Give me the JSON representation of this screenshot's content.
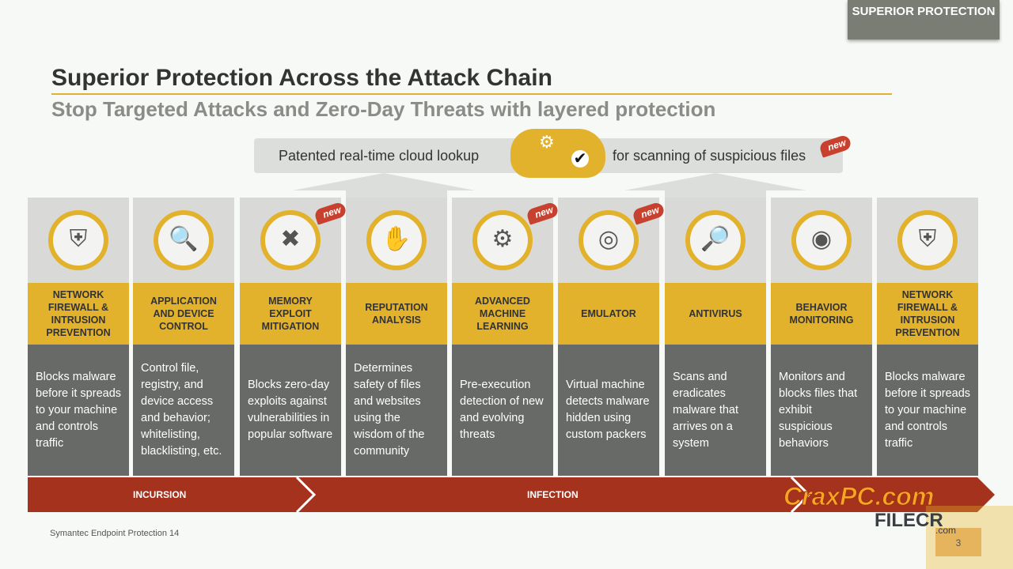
{
  "badge": "SUPERIOR PROTECTION",
  "title": "Superior Protection Across the Attack Chain",
  "subtitle": "Stop Targeted Attacks and Zero-Day Threats with layered protection",
  "banner": {
    "left": "Patented real-time cloud lookup",
    "right": "for scanning of suspicious files",
    "new_label": "new"
  },
  "columns": [
    {
      "icon": "firewall-shield-icon",
      "glyph": "⛨",
      "title": "NETWORK FIREWALL & INTRUSION PREVENTION",
      "desc": "Blocks malware before it spreads to your machine and controls traffic",
      "new": false
    },
    {
      "icon": "app-search-icon",
      "glyph": "🔍",
      "title": "APPLICATION AND DEVICE CONTROL",
      "desc": "Control file, registry, and device access and behavior; whitelisting, blacklisting, etc.",
      "new": false
    },
    {
      "icon": "exploit-shield-icon",
      "glyph": "✖",
      "title": "MEMORY EXPLOIT MITIGATION",
      "desc": "Blocks zero-day exploits against vulnerabilities in popular software",
      "new": true
    },
    {
      "icon": "hand-stop-icon",
      "glyph": "✋",
      "title": "REPUTATION ANALYSIS",
      "desc": "Determines safety of files and websites using the wisdom of the community",
      "new": false
    },
    {
      "icon": "gears-icon",
      "glyph": "⚙",
      "title": "ADVANCED MACHINE LEARNING",
      "desc": "Pre-execution detection of new and evolving threats",
      "new": true
    },
    {
      "icon": "emulator-disc-icon",
      "glyph": "◎",
      "title": "EMULATOR",
      "desc": "Virtual machine detects malware hidden using custom packers",
      "new": true
    },
    {
      "icon": "magnifier-bug-icon",
      "glyph": "🔎",
      "title": "ANTIVIRUS",
      "desc": "Scans and eradicates malware that arrives on a system",
      "new": false
    },
    {
      "icon": "radar-icon",
      "glyph": "◉",
      "title": "BEHAVIOR MONITORING",
      "desc": "Monitors and blocks files that exhibit suspicious behaviors",
      "new": false
    },
    {
      "icon": "firewall-shield-icon",
      "glyph": "⛨",
      "title": "NETWORK FIREWALL & INTRUSION PREVENTION",
      "desc": "Blocks malware before it spreads to your machine and controls traffic",
      "new": false
    }
  ],
  "band": {
    "stage1": "INCURSION",
    "stage2": "INFECTION",
    "color": "#a5321c"
  },
  "footer": "Symantec Endpoint Protection 14",
  "page_number": "3",
  "watermark": {
    "text1": "CraxPC.com",
    "text2": "FILECR",
    "text3": ".com"
  },
  "colors": {
    "accent": "#e3b22c",
    "dark": "#676a66",
    "light": "#d9dad7"
  }
}
